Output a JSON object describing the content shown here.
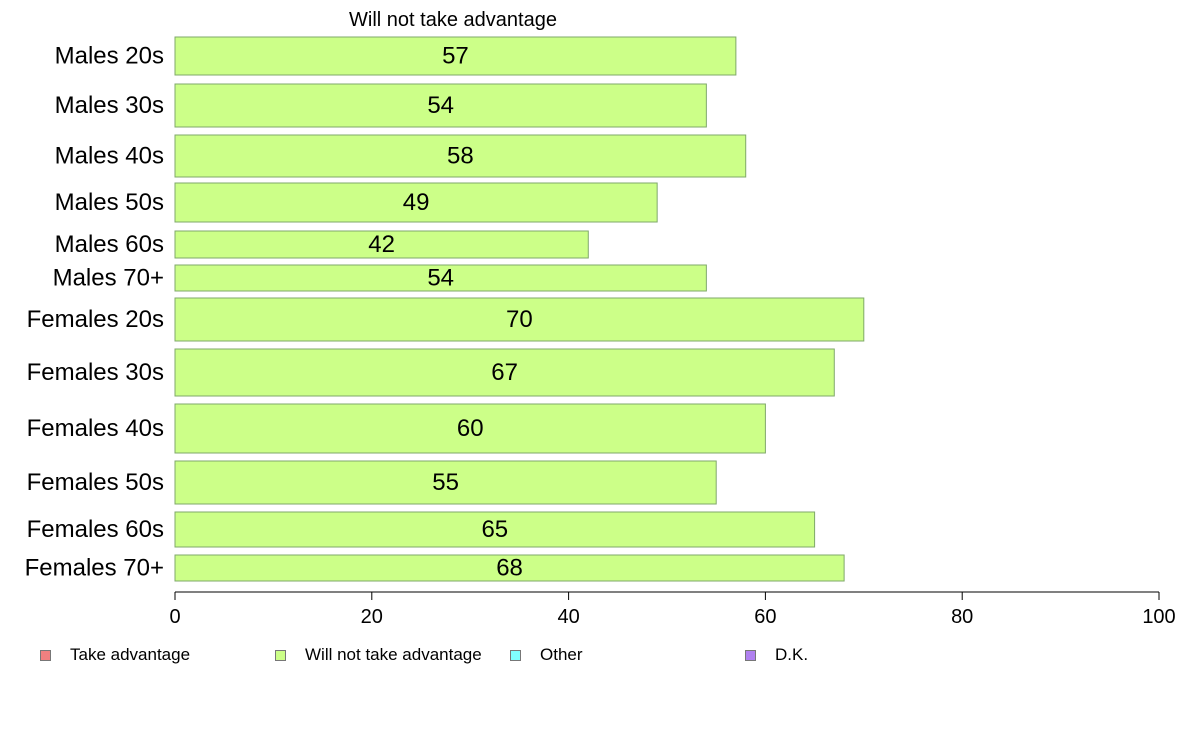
{
  "chart_data": {
    "type": "bar",
    "orientation": "horizontal",
    "title": "Will not take advantage",
    "categories": [
      "Males 20s",
      "Males 30s",
      "Males 40s",
      "Males 50s",
      "Males 60s",
      "Males 70+",
      "Females 20s",
      "Females 30s",
      "Females 40s",
      "Females 50s",
      "Females 60s",
      "Females 70+"
    ],
    "series": [
      {
        "name": "Will not take advantage",
        "color": "#ccff88",
        "values": [
          57,
          54,
          58,
          49,
          42,
          54,
          70,
          67,
          60,
          55,
          65,
          68
        ]
      }
    ],
    "xlim": [
      0,
      100
    ],
    "x_ticks": [
      "0",
      "20",
      "40",
      "60",
      "80",
      "100"
    ],
    "grid": false,
    "legend_position": "bottom",
    "legend": [
      {
        "label": "Take advantage",
        "color": "#f08080"
      },
      {
        "label": "Will not take advantage",
        "color": "#ccff88"
      },
      {
        "label": "Other",
        "color": "#80ffff"
      },
      {
        "label": "D.K.",
        "color": "#b080f0"
      }
    ]
  }
}
